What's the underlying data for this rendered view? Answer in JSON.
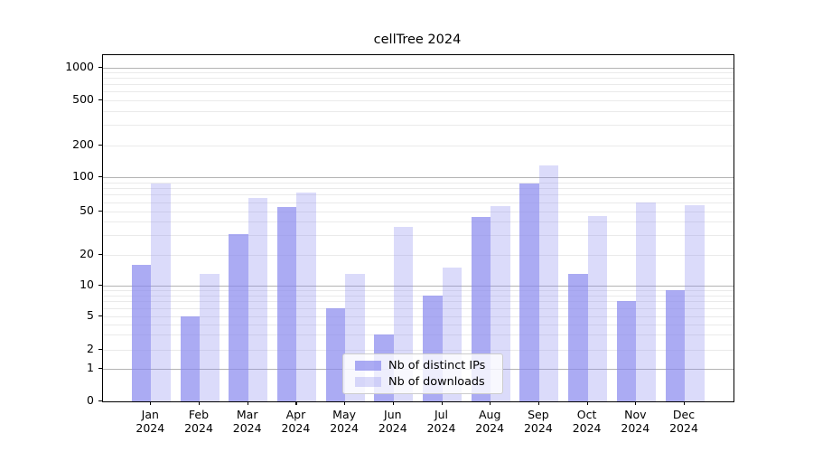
{
  "figure": {
    "title": "cellTree 2024"
  },
  "chart_data": {
    "type": "bar",
    "title": "cellTree 2024",
    "categories": [
      "Jan",
      "Feb",
      "Mar",
      "Apr",
      "May",
      "Jun",
      "Jul",
      "Aug",
      "Sep",
      "Oct",
      "Nov",
      "Dec"
    ],
    "category_year": "2024",
    "series": [
      {
        "name": "Nb of distinct IPs",
        "color": "rgba(136,136,238,0.7)",
        "values": [
          16,
          5,
          31,
          54,
          6,
          3,
          8,
          44,
          88,
          13,
          7,
          9
        ]
      },
      {
        "name": "Nb of downloads",
        "color": "rgba(136,136,238,0.3)",
        "values": [
          88,
          13,
          65,
          73,
          13,
          36,
          15,
          55,
          130,
          45,
          60,
          56
        ]
      }
    ],
    "xlabel": "",
    "ylabel": "",
    "yscale": "symlog",
    "ylim": [
      0,
      1300
    ],
    "yticks": [
      0,
      1,
      2,
      5,
      10,
      20,
      50,
      100,
      200,
      500,
      1000
    ],
    "grid": true,
    "legend_position": "lower-center",
    "colors": {
      "major_grid": "#b3b3b3",
      "minor_grid": "#eaeaea",
      "axis": "#000000"
    }
  }
}
